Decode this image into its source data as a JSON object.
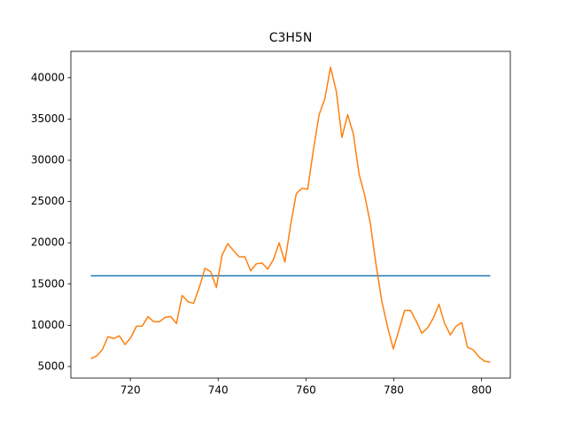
{
  "chart_data": {
    "type": "line",
    "title": "C3H5N",
    "x": [
      711,
      712.3,
      713.6,
      714.9,
      716.2,
      717.5,
      718.8,
      720.1,
      721.4,
      722.7,
      724,
      725.3,
      726.6,
      727.9,
      729.2,
      730.5,
      731.8,
      733.1,
      734.4,
      735.7,
      737,
      738.3,
      739.6,
      740.9,
      742.2,
      743.5,
      744.8,
      746.1,
      747.4,
      748.7,
      750,
      751.3,
      752.6,
      753.9,
      755.2,
      756.5,
      757.8,
      759.1,
      760.4,
      761.7,
      763,
      764.3,
      765.6,
      766.9,
      768.2,
      769.5,
      770.8,
      772.1,
      773.4,
      774.7,
      776,
      777.3,
      778.6,
      779.9,
      781.2,
      782.5,
      783.8,
      785.1,
      786.4,
      787.7,
      789,
      790.3,
      791.6,
      792.9,
      794.2,
      795.5,
      796.8,
      798.1,
      799.4,
      800.7,
      802
    ],
    "series": [
      {
        "color": "#1f77b4",
        "values": [
          16000,
          16000,
          16000,
          16000,
          16000,
          16000,
          16000,
          16000,
          16000,
          16000,
          16000,
          16000,
          16000,
          16000,
          16000,
          16000,
          16000,
          16000,
          16000,
          16000,
          16000,
          16000,
          16000,
          16000,
          16000,
          16000,
          16000,
          16000,
          16000,
          16000,
          16000,
          16000,
          16000,
          16000,
          16000,
          16000,
          16000,
          16000,
          16000,
          16000,
          16000,
          16000,
          16000,
          16000,
          16000,
          16000,
          16000,
          16000,
          16000,
          16000,
          16000,
          16000,
          16000,
          16000,
          16000,
          16000,
          16000,
          16000,
          16000,
          16000,
          16000,
          16000,
          16000,
          16000,
          16000,
          16000,
          16000,
          16000,
          16000,
          16000,
          16000
        ]
      },
      {
        "color": "#ff7f0e",
        "values": [
          5960,
          6280,
          7020,
          8620,
          8400,
          8720,
          7660,
          8510,
          9890,
          9890,
          11060,
          10430,
          10430,
          10960,
          11060,
          10210,
          13620,
          12870,
          12660,
          14570,
          16910,
          16490,
          14570,
          18510,
          19890,
          19040,
          18300,
          18300,
          16600,
          17450,
          17550,
          16810,
          17980,
          20000,
          17660,
          22130,
          25960,
          26600,
          26490,
          31280,
          35530,
          37450,
          41280,
          38400,
          32770,
          35530,
          33190,
          28300,
          25740,
          22230,
          17230,
          12870,
          9790,
          7130,
          9470,
          11810,
          11810,
          10530,
          9040,
          9680,
          10850,
          12550,
          10210,
          8830,
          9890,
          10320,
          7340,
          7020,
          6170,
          5640,
          5530
        ]
      }
    ],
    "xlim": [
      706.45,
      806.55
    ],
    "xticks": [
      720,
      740,
      760,
      780,
      800
    ],
    "ylim": [
      3600,
      43200
    ],
    "yticks": [
      5000,
      10000,
      15000,
      20000,
      25000,
      30000,
      35000,
      40000
    ],
    "grid": false
  }
}
